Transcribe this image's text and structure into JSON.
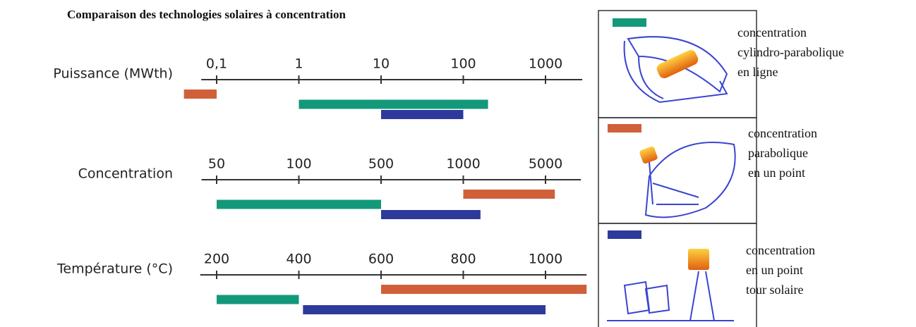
{
  "chart_data": {
    "type": "range-bar",
    "title": "Comparaison des technologies solaires à concentration",
    "axes": [
      {
        "label": "Puissance (MWth)",
        "log": true,
        "xlim": [
          0.065,
          2800
        ],
        "ticks": [
          {
            "value": 0.1,
            "label": "0,1"
          },
          1,
          10,
          100,
          1000
        ],
        "bars": [
          {
            "color": "#d0603a",
            "values": [
              0.04,
              0.1
            ]
          },
          {
            "color": "#13987a",
            "values": [
              1,
              200
            ]
          },
          {
            "color": "#2d3a9c",
            "values": [
              10,
              100
            ]
          }
        ]
      },
      {
        "label": "Concentration",
        "log": true,
        "xlim": [
          44,
          10000
        ],
        "ticks": [
          50,
          100,
          500,
          1000,
          5000
        ],
        "bars": [
          {
            "color": "#d0603a",
            "values": [
              1000,
              6000
            ]
          },
          {
            "color": "#13987a",
            "values": [
              50,
              500
            ]
          },
          {
            "color": "#2d3a9c",
            "values": [
              500,
              1400
            ]
          }
        ]
      },
      {
        "label": "Température (°C)",
        "log": false,
        "xlim": [
          160,
          1100
        ],
        "ticks": [
          200,
          400,
          600,
          800,
          1000
        ],
        "bars": [
          {
            "color": "#d0603a",
            "values": [
              600,
              1100
            ]
          },
          {
            "color": "#13987a",
            "values": [
              200,
              400
            ]
          },
          {
            "color": "#2d3a9c",
            "values": [
              410,
              1000
            ]
          }
        ]
      }
    ],
    "legend": [
      {
        "color": "#13987a",
        "lines": [
          "concentration",
          "cylindro-parabolique",
          "en ligne"
        ]
      },
      {
        "color": "#d0603a",
        "lines": [
          "concentration",
          "parabolique",
          "en un point"
        ]
      },
      {
        "color": "#2d3a9c",
        "lines": [
          "concentration",
          "en un point",
          "tour solaire"
        ]
      }
    ]
  }
}
